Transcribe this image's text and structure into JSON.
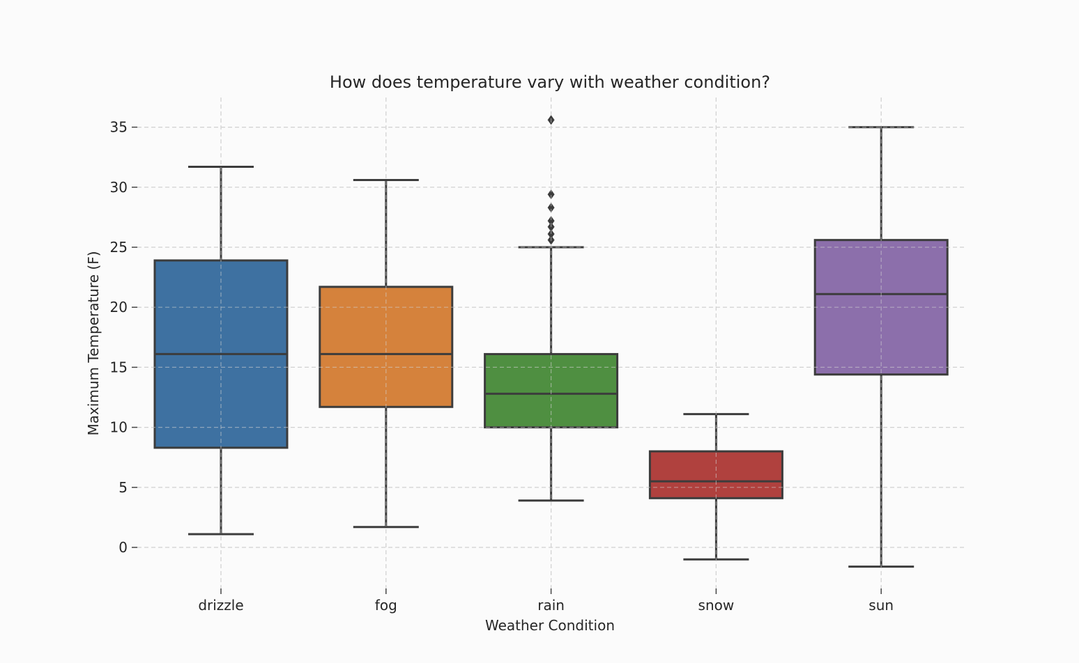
{
  "chart_data": {
    "type": "box",
    "title": "How does temperature vary with weather condition?",
    "xlabel": "Weather Condition",
    "ylabel": "Maximum Temperature (F)",
    "ylim": [
      -3.4,
      37.3
    ],
    "yticks": [
      0,
      5,
      10,
      15,
      20,
      25,
      30,
      35
    ],
    "grid": true,
    "categories": [
      "drizzle",
      "fog",
      "rain",
      "snow",
      "sun"
    ],
    "boxes": [
      {
        "category": "drizzle",
        "whisker_low": 1.1,
        "q1": 8.3,
        "median": 16.1,
        "q3": 23.9,
        "whisker_high": 31.7,
        "color": "#3e71a1",
        "outliers": []
      },
      {
        "category": "fog",
        "whisker_low": 1.7,
        "q1": 11.7,
        "median": 16.1,
        "q3": 21.7,
        "whisker_high": 30.6,
        "color": "#d5823c",
        "outliers": []
      },
      {
        "category": "rain",
        "whisker_low": 3.9,
        "q1": 10.0,
        "median": 12.8,
        "q3": 16.1,
        "whisker_high": 25.0,
        "color": "#4f8f41",
        "outliers": [
          25.6,
          26.1,
          26.7,
          27.2,
          28.3,
          29.4,
          35.6
        ]
      },
      {
        "category": "snow",
        "whisker_low": -1.0,
        "q1": 4.1,
        "median": 5.5,
        "q3": 8.0,
        "whisker_high": 11.1,
        "color": "#b0413e",
        "outliers": []
      },
      {
        "category": "sun",
        "whisker_low": -1.6,
        "q1": 14.4,
        "median": 21.1,
        "q3": 25.6,
        "whisker_high": 35.0,
        "color": "#8c6fab",
        "outliers": []
      }
    ]
  }
}
